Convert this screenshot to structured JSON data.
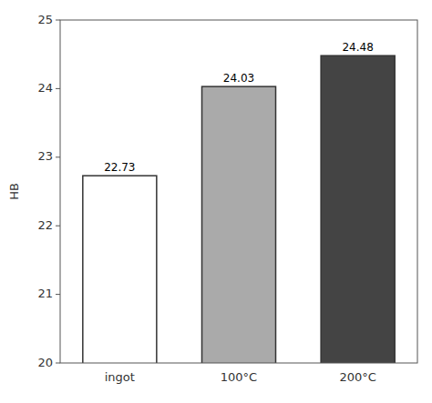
{
  "chart_data": {
    "type": "bar",
    "categories": [
      "ingot",
      "100°C",
      "200°C"
    ],
    "values": [
      22.73,
      24.03,
      24.48
    ],
    "colors": [
      "#ffffff",
      "#aaaaaa",
      "#444444"
    ],
    "ylabel": "HB",
    "ylim": [
      20,
      25
    ],
    "yticks": [
      20,
      21,
      22,
      23,
      24,
      25
    ],
    "data_labels": true,
    "grid": false
  }
}
